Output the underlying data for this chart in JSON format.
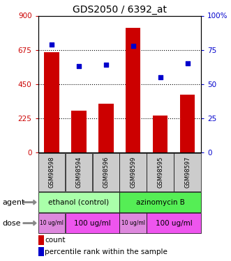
{
  "title": "GDS2050 / 6392_at",
  "samples": [
    "GSM98598",
    "GSM98594",
    "GSM98596",
    "GSM98599",
    "GSM98595",
    "GSM98597"
  ],
  "counts": [
    660,
    275,
    320,
    820,
    245,
    380
  ],
  "percentiles": [
    79,
    63,
    64,
    78,
    55,
    65
  ],
  "ylim_left": [
    0,
    900
  ],
  "ylim_right": [
    0,
    100
  ],
  "yticks_left": [
    0,
    225,
    450,
    675,
    900
  ],
  "yticks_right": [
    0,
    25,
    50,
    75,
    100
  ],
  "hlines": [
    225,
    450,
    675
  ],
  "bar_color": "#cc0000",
  "dot_color": "#0000cc",
  "sample_bg_color": "#cccccc",
  "agents": [
    {
      "label": "ethanol (control)",
      "cols": [
        0,
        1,
        2
      ],
      "color": "#aaffaa"
    },
    {
      "label": "azinomycin B",
      "cols": [
        3,
        4,
        5
      ],
      "color": "#55ee55"
    }
  ],
  "dose_groups": [
    {
      "cols": [
        0
      ],
      "label": "10 ug/ml",
      "color": "#dd88dd",
      "small": true
    },
    {
      "cols": [
        1,
        2
      ],
      "label": "100 ug/ml",
      "color": "#ee55ee",
      "small": false
    },
    {
      "cols": [
        3
      ],
      "label": "10 ug/ml",
      "color": "#dd88dd",
      "small": true
    },
    {
      "cols": [
        4,
        5
      ],
      "label": "100 ug/ml",
      "color": "#ee55ee",
      "small": false
    }
  ],
  "legend_bar_label": "count",
  "legend_dot_label": "percentile rank within the sample",
  "title_fontsize": 10,
  "tick_fontsize": 7.5
}
